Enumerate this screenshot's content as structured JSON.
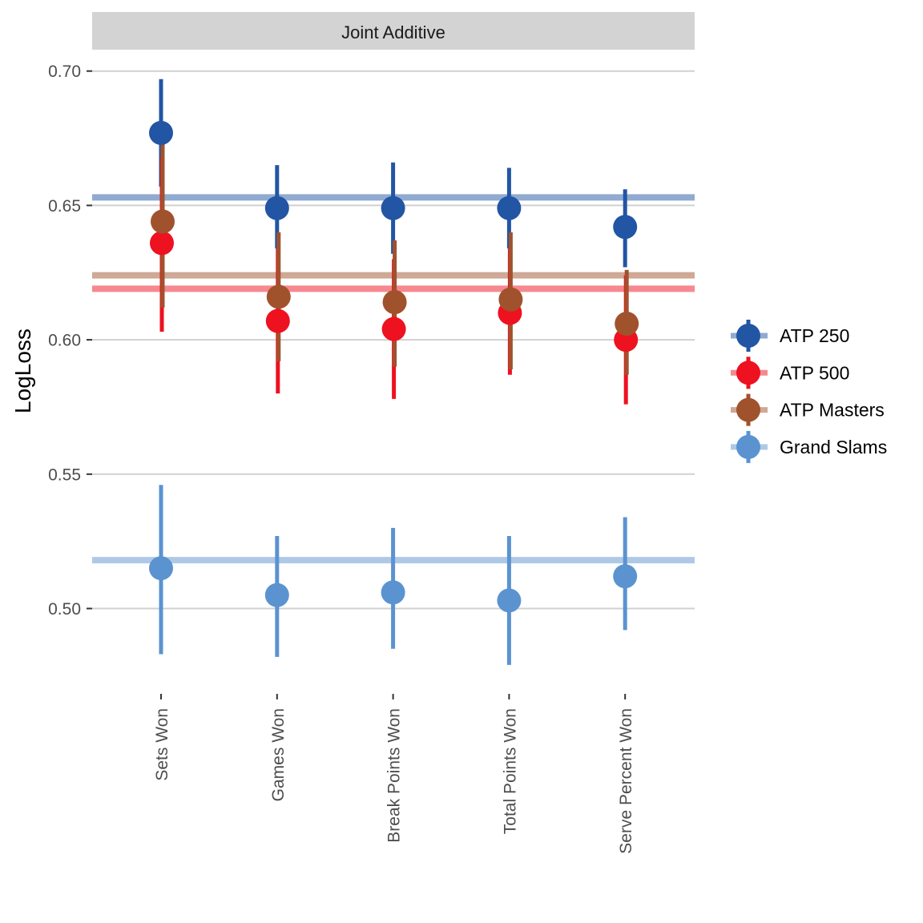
{
  "chart_data": {
    "type": "scatter",
    "panel_title": "Joint Additive",
    "xlabel": "",
    "ylabel": "LogLoss",
    "ylim": [
      0.48,
      0.71
    ],
    "y_ticks": [
      "0.50",
      "0.55",
      "0.60",
      "0.65",
      "0.70"
    ],
    "categories": [
      "Sets Won",
      "Games Won",
      "Break Points Won",
      "Total Points Won",
      "Serve Percent Won"
    ],
    "grid": "horizontal",
    "legend_position": "right",
    "series": [
      {
        "name": "ATP 250",
        "color": "#2255a4",
        "values": [
          0.677,
          0.649,
          0.649,
          0.649,
          0.642
        ],
        "lower": [
          0.657,
          0.634,
          0.632,
          0.634,
          0.627
        ],
        "upper": [
          0.697,
          0.665,
          0.666,
          0.664,
          0.656
        ],
        "baseline": 0.653
      },
      {
        "name": "ATP 500",
        "color": "#ee1120",
        "values": [
          0.636,
          0.607,
          0.604,
          0.61,
          0.6
        ],
        "lower": [
          0.603,
          0.58,
          0.578,
          0.587,
          0.576
        ],
        "upper": [
          0.668,
          0.634,
          0.63,
          0.634,
          0.624
        ],
        "baseline": 0.619
      },
      {
        "name": "ATP Masters",
        "color": "#a0522d",
        "values": [
          0.644,
          0.616,
          0.614,
          0.615,
          0.606
        ],
        "lower": [
          0.612,
          0.592,
          0.59,
          0.589,
          0.587
        ],
        "upper": [
          0.676,
          0.64,
          0.637,
          0.64,
          0.626
        ],
        "baseline": 0.624
      },
      {
        "name": "Grand Slams",
        "color": "#5b93d0",
        "values": [
          0.515,
          0.505,
          0.506,
          0.503,
          0.512
        ],
        "lower": [
          0.483,
          0.482,
          0.485,
          0.479,
          0.492
        ],
        "upper": [
          0.546,
          0.527,
          0.53,
          0.527,
          0.534
        ],
        "baseline": 0.518
      }
    ]
  }
}
